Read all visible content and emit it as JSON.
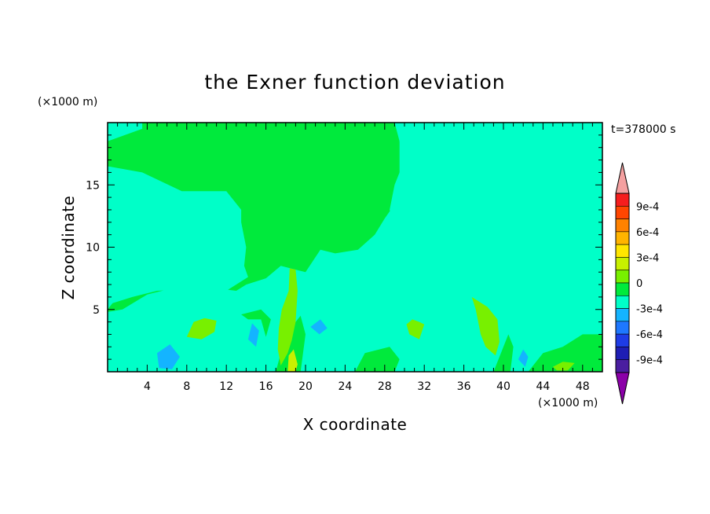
{
  "chart_data": {
    "type": "heatmap",
    "title": "the Exner function deviation",
    "xlabel": "X coordinate",
    "ylabel": "Z coordinate",
    "x_unit": "(×1000 m)",
    "y_unit": "(×1000 m)",
    "time_label": "t=378000 s",
    "xlim": [
      0,
      50
    ],
    "ylim": [
      0,
      20
    ],
    "x_ticks": [
      "4",
      "8",
      "12",
      "16",
      "20",
      "24",
      "28",
      "32",
      "36",
      "40",
      "44",
      "48"
    ],
    "y_ticks": [
      "5",
      "10",
      "15"
    ],
    "colorbar": {
      "tick_labels": [
        "9e-4",
        "6e-4",
        "3e-4",
        "0",
        "-3e-4",
        "-6e-4",
        "-9e-4"
      ],
      "levels": [
        {
          "color": "#8b00a8"
        },
        {
          "color": "#4a1ea0"
        },
        {
          "color": "#1e1eb4"
        },
        {
          "color": "#1e3ce6"
        },
        {
          "color": "#1e78ff"
        },
        {
          "color": "#14b4ff"
        },
        {
          "color": "#00ffc8"
        },
        {
          "color": "#00ea3c"
        },
        {
          "color": "#78f000"
        },
        {
          "color": "#c8f000"
        },
        {
          "color": "#ffe600"
        },
        {
          "color": "#ffb400"
        },
        {
          "color": "#ff8200"
        },
        {
          "color": "#ff4600"
        },
        {
          "color": "#f51e1e"
        },
        {
          "color": "#f4a0a0"
        }
      ]
    },
    "field_regions": [
      {
        "level": "0 to 1.5e-4",
        "color": "#00ea3c",
        "shape": [
          [
            0,
            18.5
          ],
          [
            3.5,
            19.5
          ],
          [
            3.5,
            20
          ],
          [
            29.5,
            20
          ],
          [
            29.5,
            14
          ],
          [
            28,
            12.3
          ],
          [
            27,
            11
          ],
          [
            25.3,
            9.8
          ],
          [
            23,
            9.5
          ],
          [
            21.5,
            9.8
          ],
          [
            20,
            8
          ],
          [
            17.5,
            8.5
          ],
          [
            16,
            7.5
          ],
          [
            14,
            7
          ],
          [
            13,
            6.5
          ],
          [
            10,
            6.8
          ],
          [
            8,
            7
          ],
          [
            4,
            6.2
          ],
          [
            1.5,
            5
          ],
          [
            0,
            4.8
          ]
        ]
      },
      {
        "level": "0 to 1.5e-4",
        "color": "#00ea3c",
        "shape": [
          [
            42.5,
            20
          ],
          [
            50,
            20
          ],
          [
            50,
            17
          ],
          [
            48.5,
            17
          ],
          [
            46.5,
            18.5
          ],
          [
            44,
            19
          ]
        ]
      },
      {
        "level": "-1.5e-4 to 0",
        "color": "#00ffc8",
        "shape": [
          [
            0,
            16.5
          ],
          [
            3.5,
            16
          ],
          [
            7.5,
            14.5
          ],
          [
            12,
            14.5
          ],
          [
            13.5,
            13
          ],
          [
            13.5,
            12
          ],
          [
            14,
            10
          ],
          [
            13.8,
            8.5
          ],
          [
            14.2,
            7.6
          ],
          [
            12,
            6.5
          ],
          [
            10,
            6.7
          ],
          [
            5,
            6.5
          ],
          [
            2.5,
            6
          ],
          [
            0.5,
            5.5
          ],
          [
            0,
            5
          ]
        ]
      },
      {
        "level": "-1.5e-4 to 0",
        "color": "#00ffc8",
        "shape": [
          [
            29,
            20
          ],
          [
            50,
            20
          ],
          [
            50,
            4
          ],
          [
            47.5,
            3.5
          ],
          [
            46,
            4
          ],
          [
            45,
            4.8
          ],
          [
            44,
            4.6
          ],
          [
            42,
            3.8
          ],
          [
            40,
            4.2
          ],
          [
            39,
            4.8
          ],
          [
            38,
            7
          ],
          [
            36.5,
            9.5
          ],
          [
            35.5,
            11
          ],
          [
            34.5,
            12
          ],
          [
            33.8,
            12.5
          ],
          [
            32,
            12.3
          ],
          [
            31,
            11.8
          ],
          [
            29.5,
            9.8
          ],
          [
            28.5,
            13
          ],
          [
            29,
            15
          ],
          [
            30,
            17
          ]
        ]
      },
      {
        "level": "-1.5e-4 to 0",
        "color": "#00ffc8",
        "shape": [
          [
            4,
            4
          ],
          [
            8,
            4.2
          ],
          [
            11,
            4
          ],
          [
            10.8,
            1.5
          ],
          [
            7.5,
            0.8
          ],
          [
            4.5,
            0.5
          ],
          [
            3,
            1
          ],
          [
            3,
            2.5
          ]
        ]
      },
      {
        "level": "-1.5e-4 to 0",
        "color": "#00ffc8",
        "shape": [
          [
            12.2,
            2.5
          ],
          [
            13.5,
            4.5
          ],
          [
            15.5,
            5
          ],
          [
            16.8,
            3
          ],
          [
            16.5,
            1
          ],
          [
            14,
            0.5
          ],
          [
            12.8,
            1
          ]
        ]
      },
      {
        "level": "-1.5e-4 to 0",
        "color": "#00ffc8",
        "shape": [
          [
            19.2,
            4
          ],
          [
            21,
            5.2
          ],
          [
            23,
            4.8
          ],
          [
            23.7,
            3.3
          ],
          [
            23,
            2
          ],
          [
            21,
            1.6
          ],
          [
            19.5,
            2.4
          ]
        ]
      },
      {
        "level": "-1.5e-4 to 0",
        "color": "#00ffc8",
        "shape": [
          [
            42.5,
            11
          ],
          [
            44.5,
            11.5
          ],
          [
            45,
            9.5
          ],
          [
            45,
            7.5
          ],
          [
            44.3,
            6.2
          ],
          [
            43.3,
            6.5
          ],
          [
            42.5,
            7.5
          ]
        ]
      },
      {
        "level": "-1.5e-4 to 0",
        "color": "#00ffc8",
        "shape": [
          [
            30.5,
            1
          ],
          [
            31.5,
            2.8
          ],
          [
            32.5,
            2.3
          ],
          [
            32.4,
            1
          ]
        ]
      },
      {
        "level": "-3e-4 to -1.5e-4",
        "color": "#14b4ff",
        "shape": [
          [
            5,
            1.5
          ],
          [
            6.3,
            2.2
          ],
          [
            7.3,
            1.2
          ],
          [
            6.5,
            0.2
          ],
          [
            5.2,
            0.3
          ]
        ]
      },
      {
        "level": "-3e-4 to -1.5e-4",
        "color": "#14b4ff",
        "shape": [
          [
            14.2,
            2.6
          ],
          [
            14.6,
            3.9
          ],
          [
            15.3,
            3.3
          ],
          [
            15,
            2
          ]
        ]
      },
      {
        "level": "-3e-4 to -1.5e-4",
        "color": "#14b4ff",
        "shape": [
          [
            20.5,
            3.6
          ],
          [
            21.5,
            4.2
          ],
          [
            22.2,
            3.5
          ],
          [
            21.4,
            3
          ]
        ]
      },
      {
        "level": "-3e-4 to -1.5e-4",
        "color": "#14b4ff",
        "shape": [
          [
            41.5,
            1
          ],
          [
            42,
            1.8
          ],
          [
            42.5,
            1.2
          ],
          [
            42.2,
            0.4
          ]
        ]
      },
      {
        "level": "0 to 1.5e-4",
        "color": "#00ea3c",
        "shape": [
          [
            13.5,
            4.6
          ],
          [
            15.5,
            5
          ],
          [
            16.5,
            4.2
          ],
          [
            16,
            2.8
          ],
          [
            15.5,
            4.2
          ],
          [
            14.2,
            4.2
          ]
        ]
      },
      {
        "level": "0 to 1.5e-4",
        "color": "#00ea3c",
        "shape": [
          [
            17,
            0
          ],
          [
            18,
            3
          ],
          [
            19.5,
            4.5
          ],
          [
            20,
            3
          ],
          [
            19.5,
            0
          ]
        ]
      },
      {
        "level": "0 to 1.5e-4",
        "color": "#00ea3c",
        "shape": [
          [
            25,
            0
          ],
          [
            26,
            1.5
          ],
          [
            28.5,
            2
          ],
          [
            29.5,
            1
          ],
          [
            29,
            0
          ]
        ]
      },
      {
        "level": "0 to 1.5e-4",
        "color": "#00ea3c",
        "shape": [
          [
            39,
            0
          ],
          [
            40,
            2
          ],
          [
            40.5,
            3
          ],
          [
            41,
            2
          ],
          [
            40.7,
            0
          ]
        ]
      },
      {
        "level": "0 to 1.5e-4",
        "color": "#00ea3c",
        "shape": [
          [
            42.5,
            0
          ],
          [
            44,
            1.5
          ],
          [
            46,
            2
          ],
          [
            48,
            3
          ],
          [
            50,
            3
          ],
          [
            50,
            0
          ]
        ]
      },
      {
        "level": "1.5e-4 to 3e-4",
        "color": "#78f000",
        "shape": [
          [
            8,
            2.8
          ],
          [
            8.7,
            4
          ],
          [
            9.8,
            4.3
          ],
          [
            11,
            4.1
          ],
          [
            10.8,
            3.2
          ],
          [
            9.5,
            2.6
          ]
        ]
      },
      {
        "level": "1.5e-4 to 3e-4",
        "color": "#78f000",
        "shape": [
          [
            17.6,
            5
          ],
          [
            18.3,
            6.5
          ],
          [
            18.4,
            8.3
          ],
          [
            19,
            8.2
          ],
          [
            19.2,
            6.5
          ],
          [
            19,
            4
          ],
          [
            18.6,
            2.5
          ],
          [
            18.2,
            1.5
          ],
          [
            17.5,
            0.5
          ],
          [
            17.2,
            1.8
          ],
          [
            17.3,
            3.5
          ]
        ]
      },
      {
        "level": "1.5e-4 to 3e-4",
        "color": "#78f000",
        "shape": [
          [
            30.2,
            3.8
          ],
          [
            30.5,
            3
          ],
          [
            31.5,
            2.6
          ],
          [
            32,
            3.8
          ],
          [
            31.5,
            4
          ],
          [
            30.8,
            4.2
          ]
        ]
      },
      {
        "level": "1.5e-4 to 3e-4",
        "color": "#78f000",
        "shape": [
          [
            36.8,
            6
          ],
          [
            37.2,
            5
          ],
          [
            37.7,
            3
          ],
          [
            38.2,
            2
          ],
          [
            39.2,
            1.3
          ],
          [
            39.6,
            2.4
          ],
          [
            39.4,
            4.2
          ],
          [
            38.4,
            5.2
          ]
        ]
      },
      {
        "level": "1.5e-4 to 3e-4",
        "color": "#78f000",
        "shape": [
          [
            45,
            0.4
          ],
          [
            46,
            0.8
          ],
          [
            47.2,
            0.7
          ],
          [
            46.5,
            0.1
          ],
          [
            45.4,
            0.1
          ]
        ]
      },
      {
        "level": "3e-4 to 4.5e-4",
        "color": "#c8f000",
        "shape": [
          [
            18.2,
            0
          ],
          [
            18.3,
            1.3
          ],
          [
            18.8,
            1.8
          ],
          [
            19.2,
            0.6
          ],
          [
            19,
            0
          ]
        ]
      }
    ]
  }
}
